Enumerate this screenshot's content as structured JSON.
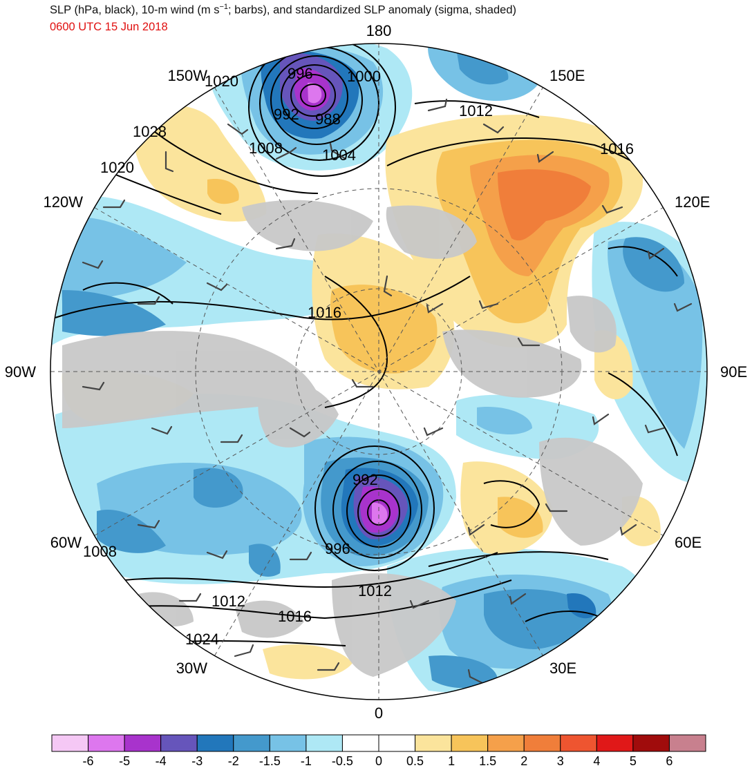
{
  "header": {
    "title_pre": "SLP (hPa, black), 10-m wind (m s",
    "title_sup": "−1",
    "title_post": "; barbs), and standardized SLP anomaly (sigma, shaded)",
    "valid_time": "0600 UTC 15 Jun 2018"
  },
  "map": {
    "projection": "north-polar-stereographic",
    "longitude_labels": [
      "180",
      "150E",
      "120E",
      "90E",
      "60E",
      "30E",
      "0",
      "30W",
      "60W",
      "90W",
      "120W",
      "150W"
    ],
    "isobar_labels": [
      "996",
      "1000",
      "1020",
      "992",
      "988",
      "1012",
      "1028",
      "1008",
      "1004",
      "1016",
      "1020",
      "1016",
      "992",
      "996",
      "1008",
      "1012",
      "1012",
      "1016",
      "1024"
    ],
    "colors": {
      "land": "#c8c8c8",
      "ocean": "#ffffff",
      "isobar": "#000000",
      "barb": "#444444",
      "graticule": "#555555"
    }
  },
  "colorbar": {
    "ticks": [
      "-6",
      "-5",
      "-4",
      "-3",
      "-2",
      "-1.5",
      "-1",
      "-0.5",
      "0",
      "0.5",
      "1",
      "1.5",
      "2",
      "3",
      "4",
      "5",
      "6"
    ],
    "colors": [
      "#f5c8f5",
      "#dd77ee",
      "#a833cc",
      "#6655bb",
      "#2277bb",
      "#4499cc",
      "#77c2e6",
      "#aee8f5",
      "#ffffff",
      "#ffffff",
      "#fbe49c",
      "#f7c45a",
      "#f5a04a",
      "#f07e3a",
      "#ee5530",
      "#e01818",
      "#a00c0c",
      "#c8808e"
    ]
  }
}
